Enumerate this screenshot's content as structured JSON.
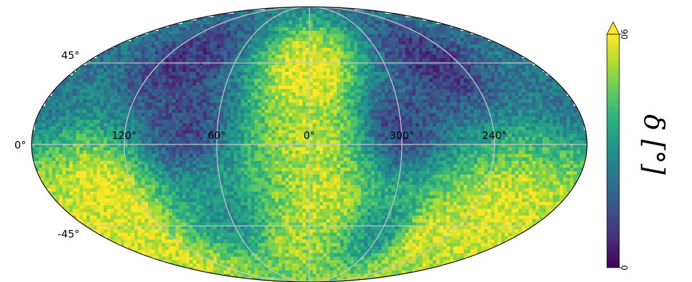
{
  "chart_data": {
    "type": "heatmap",
    "projection": "mollweide",
    "title": "",
    "xlabel": "",
    "ylabel": "",
    "x_tick_labels": [
      "120°",
      "60°",
      "0°",
      "300°",
      "240°"
    ],
    "y_tick_labels": [
      "45°",
      "0°",
      "-45°"
    ],
    "longitude_grid_deg": [
      120,
      60,
      0,
      300,
      240
    ],
    "latitude_grid_deg": [
      45,
      0,
      -45
    ],
    "grid": true,
    "colormap": "viridis",
    "colorbar": {
      "label": "δ [°]",
      "min": 0,
      "max": 90,
      "tick_labels": [
        "0",
        "90"
      ],
      "extend": "max",
      "placement": "right"
    },
    "regions": [
      {
        "lon": 0,
        "lat": 40,
        "value": 88
      },
      {
        "lon": 0,
        "lat": 0,
        "value": 80
      },
      {
        "lon": 350,
        "lat": -30,
        "value": 82
      },
      {
        "lon": 10,
        "lat": -55,
        "value": 78
      },
      {
        "lon": 140,
        "lat": -30,
        "value": 88
      },
      {
        "lon": 160,
        "lat": -55,
        "value": 85
      },
      {
        "lon": 220,
        "lat": -40,
        "value": 86
      },
      {
        "lon": 260,
        "lat": -50,
        "value": 85
      },
      {
        "lon": 100,
        "lat": 45,
        "value": 15
      },
      {
        "lon": 260,
        "lat": 45,
        "value": 15
      },
      {
        "lon": 80,
        "lat": 10,
        "value": 20
      },
      {
        "lon": 300,
        "lat": 10,
        "value": 20
      },
      {
        "lon": 180,
        "lat": 30,
        "value": 35
      },
      {
        "lon": 60,
        "lat": -40,
        "value": 45
      },
      {
        "lon": 300,
        "lat": -50,
        "value": 45
      }
    ],
    "colors": {
      "viridis_0": "#440154",
      "viridis_25": "#3b528b",
      "viridis_50": "#21918c",
      "viridis_75": "#5ec962",
      "viridis_100": "#fde725"
    }
  }
}
